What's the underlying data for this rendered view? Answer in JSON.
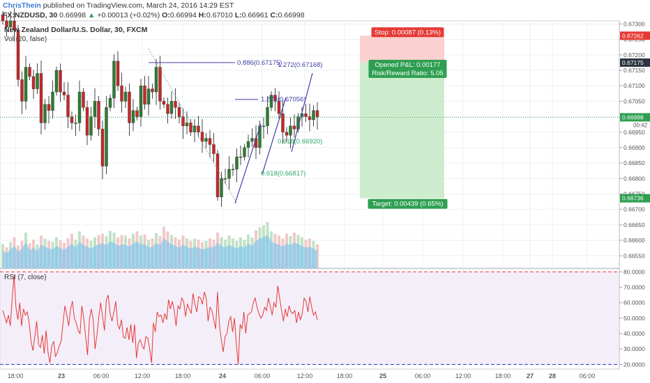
{
  "header": {
    "author": "ChrisThein",
    "published": "published on TradingView.com, March 24, 2016 14:29 EST",
    "symbol": "FX:NZDUSD, 30",
    "last": "0.66998",
    "arrow": "▲",
    "change": "+0.00013 (+0.02%)",
    "o_label": "O:",
    "o_value": "0.66994",
    "h_label": "H:",
    "h_value": "0.67010",
    "l_label": "L:",
    "l_value": "0.66961",
    "c_label": "C:",
    "c_value": "0.66998"
  },
  "colors": {
    "up": "#2e7d32",
    "down": "#c62828",
    "grid": "#eceff2",
    "volume": "#7fc4ec",
    "rsi_line": "#e53935",
    "rsi_band": "#f4eef9",
    "stop_zone": "#fbd0d0",
    "target_zone": "#cdeccd",
    "fib": "#3f3fa8",
    "fib_green": "#2ea86b"
  },
  "chart_data": [
    {
      "type": "candlestick",
      "title": "New Zealand Dollar/U.S. Dollar, 30, FXCM",
      "subtitle": "Vol (20, false)",
      "ylim": [
        0.6651,
        0.6731
      ],
      "y_ticks": [
        "0.67300",
        "0.67250",
        "0.67200",
        "0.67150",
        "0.67100",
        "0.67050",
        "0.67000",
        "0.66950",
        "0.66900",
        "0.66850",
        "0.66800",
        "0.66750",
        "0.66700",
        "0.66650",
        "0.66600",
        "0.66550"
      ],
      "x_ticks": [
        "18:00",
        "23",
        "06:00",
        "12:00",
        "18:00",
        "24",
        "06:00",
        "12:00",
        "18:00",
        "25",
        "06:00",
        "12:00",
        "18:00",
        "27",
        "28",
        "06:00"
      ],
      "price_labels": [
        {
          "value": 0.67262,
          "text": "0.67262",
          "color": "#e53935"
        },
        {
          "value": 0.67175,
          "text": "0.67175",
          "color": "#2b3340"
        },
        {
          "value": 0.66998,
          "text": "0.66998",
          "color": "#2e9f50"
        },
        {
          "value": 0.66736,
          "text": "0.66736",
          "color": "#2e9f50"
        }
      ],
      "countdown": "00:42",
      "closes": [
        0.6731,
        0.6729,
        0.6731,
        0.6728,
        0.6712,
        0.6705,
        0.6716,
        0.6713,
        0.6709,
        0.6714,
        0.6698,
        0.6704,
        0.6702,
        0.6708,
        0.6715,
        0.6708,
        0.6707,
        0.67,
        0.6698,
        0.6698,
        0.6708,
        0.6703,
        0.6694,
        0.67,
        0.6705,
        0.6696,
        0.6684,
        0.6703,
        0.6706,
        0.6718,
        0.671,
        0.6705,
        0.6708,
        0.6698,
        0.6702,
        0.67,
        0.671,
        0.6704,
        0.6709,
        0.6708,
        0.6716,
        0.6705,
        0.6704,
        0.6701,
        0.6705,
        0.6703,
        0.67,
        0.6697,
        0.6698,
        0.6695,
        0.6697,
        0.6695,
        0.6692,
        0.6693,
        0.6691,
        0.6688,
        0.6674,
        0.668,
        0.668,
        0.6683,
        0.6683,
        0.6687,
        0.6687,
        0.669,
        0.6692,
        0.6693,
        0.669,
        0.6697,
        0.6697,
        0.6703,
        0.6707,
        0.6705,
        0.6701,
        0.6695,
        0.6694,
        0.6697,
        0.6696,
        0.67,
        0.6701,
        0.67,
        0.6699,
        0.6702,
        0.67
      ],
      "volume": [
        0.41,
        0.35,
        0.44,
        0.52,
        0.38,
        0.46,
        0.6,
        0.42,
        0.48,
        0.4,
        0.55,
        0.5,
        0.46,
        0.44,
        0.52,
        0.47,
        0.43,
        0.5,
        0.58,
        0.48,
        0.62,
        0.55,
        0.5,
        0.46,
        0.52,
        0.56,
        0.58,
        0.54,
        0.63,
        0.6,
        0.52,
        0.56,
        0.55,
        0.5,
        0.58,
        0.62,
        0.55,
        0.57,
        0.48,
        0.5,
        0.59,
        0.54,
        0.7,
        0.62,
        0.56,
        0.52,
        0.48,
        0.55,
        0.5,
        0.46,
        0.5,
        0.48,
        0.44,
        0.46,
        0.5,
        0.48,
        0.6,
        0.52,
        0.48,
        0.55,
        0.5,
        0.46,
        0.52,
        0.48,
        0.57,
        0.52,
        0.64,
        0.69,
        0.72,
        0.78,
        0.62,
        0.58,
        0.55,
        0.5,
        0.58,
        0.54,
        0.6,
        0.56,
        0.52,
        0.48,
        0.5,
        0.46,
        0.4
      ],
      "drawings": {
        "fib_labels": [
          {
            "text": "0.886(0.67175)",
            "value": 0.67175
          },
          {
            "text": "1.272(0.67168)",
            "value": 0.67168
          },
          {
            "text": "1.272(0.67056)",
            "value": 0.67056
          },
          {
            "text": "0.618(0.66920)",
            "value": 0.6692,
            "green": true
          },
          {
            "text": "0.618(0.66817)",
            "value": 0.66817,
            "green": true
          }
        ],
        "stop_label": "Stop: 0.00087 (0.13%)",
        "pnl_label": "Opened P&L: 0.00177",
        "rr_label": "Risk/Reward Ratio: 5.05",
        "target_label": "Target: 0.00439 (0.65%)",
        "entry": 0.67175,
        "stop": 0.67262,
        "target": 0.66736
      }
    },
    {
      "type": "line",
      "title": "RSI (7, close)",
      "ylim": [
        17,
        82
      ],
      "y_ticks": [
        "80.0000",
        "70.0000",
        "60.0000",
        "50.0000",
        "40.0000",
        "30.0000",
        "20.0000"
      ],
      "bands": [
        20,
        80
      ],
      "values": [
        55,
        51,
        47,
        52,
        45,
        63,
        78,
        57,
        49,
        60,
        45,
        56,
        52,
        54,
        47,
        35,
        29,
        38,
        48,
        33,
        31,
        39,
        27,
        42,
        28,
        21,
        32,
        35,
        25,
        28,
        32,
        35,
        47,
        58,
        52,
        45,
        56,
        61,
        50,
        47,
        42,
        40,
        58,
        50,
        38,
        26,
        49,
        56,
        49,
        30,
        39,
        51,
        60,
        51,
        42,
        62,
        65,
        53,
        48,
        54,
        61,
        46,
        43,
        49,
        38,
        37,
        44,
        36,
        46,
        34,
        46,
        24,
        34,
        36,
        32,
        30,
        38,
        37,
        30,
        21,
        47,
        41,
        54,
        51,
        52,
        47,
        53,
        49,
        62,
        56,
        61,
        55,
        45,
        58,
        56,
        63,
        61,
        51,
        59,
        56,
        53,
        66,
        59,
        54,
        64,
        63,
        59,
        67,
        63,
        48,
        57,
        55,
        49,
        43,
        67,
        46,
        36,
        28,
        38,
        40,
        48,
        51,
        41,
        50,
        33,
        20,
        46,
        43,
        54,
        40,
        52,
        53,
        54,
        60,
        63,
        57,
        53,
        50,
        52,
        57,
        55,
        63,
        58,
        52,
        60,
        57,
        71,
        63,
        55,
        48,
        56,
        51,
        58,
        54,
        53,
        55,
        47,
        54,
        49,
        53,
        63,
        61,
        54,
        64,
        57,
        52,
        54,
        49
      ]
    }
  ]
}
